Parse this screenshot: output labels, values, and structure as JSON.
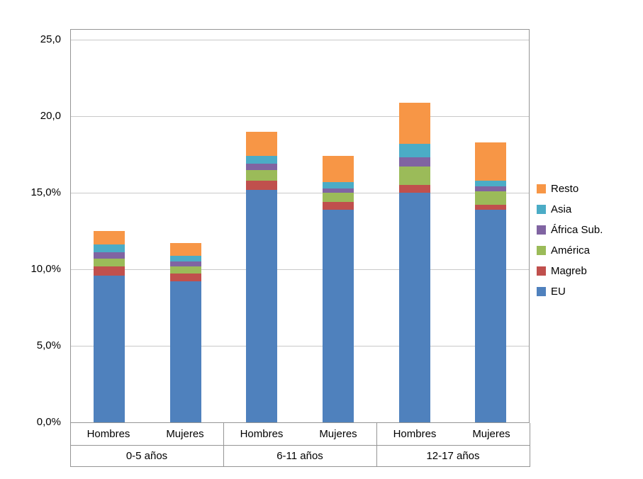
{
  "chart_data": {
    "type": "bar",
    "stacked": true,
    "title": "",
    "xlabel": "",
    "ylabel": "",
    "ylim": [
      0,
      25
    ],
    "grid": true,
    "legend_position": "right",
    "groups": [
      "0-5 años",
      "6-11 años",
      "12-17 años"
    ],
    "subcategories": [
      "Hombres",
      "Mujeres"
    ],
    "y_ticks": [
      "25,0",
      "20,0",
      "15,0%",
      "10,0%",
      "5,0%",
      "0,0%"
    ],
    "y_tick_values": [
      25,
      20,
      15,
      10,
      5,
      0
    ],
    "series": [
      {
        "name": "EU",
        "color": "#4F81BD",
        "values": [
          9.6,
          9.2,
          15.2,
          13.9,
          15.0,
          13.9
        ]
      },
      {
        "name": "Magreb",
        "color": "#C0504D",
        "values": [
          0.6,
          0.5,
          0.6,
          0.5,
          0.5,
          0.3
        ]
      },
      {
        "name": "América",
        "color": "#9BBB59",
        "values": [
          0.5,
          0.5,
          0.7,
          0.6,
          1.2,
          0.9
        ]
      },
      {
        "name": "África Sub.",
        "color": "#8064A2",
        "values": [
          0.4,
          0.3,
          0.4,
          0.3,
          0.6,
          0.3
        ]
      },
      {
        "name": "Asia",
        "color": "#4BACC6",
        "values": [
          0.5,
          0.4,
          0.5,
          0.4,
          0.9,
          0.4
        ]
      },
      {
        "name": "Resto",
        "color": "#F79646",
        "values": [
          0.9,
          0.8,
          1.6,
          1.7,
          2.7,
          2.5
        ]
      }
    ],
    "legend": [
      "Resto",
      "Asia",
      "África Sub.",
      "América",
      "Magreb",
      "EU"
    ],
    "totals": [
      12.5,
      11.7,
      19.0,
      17.4,
      20.9,
      18.3
    ]
  }
}
